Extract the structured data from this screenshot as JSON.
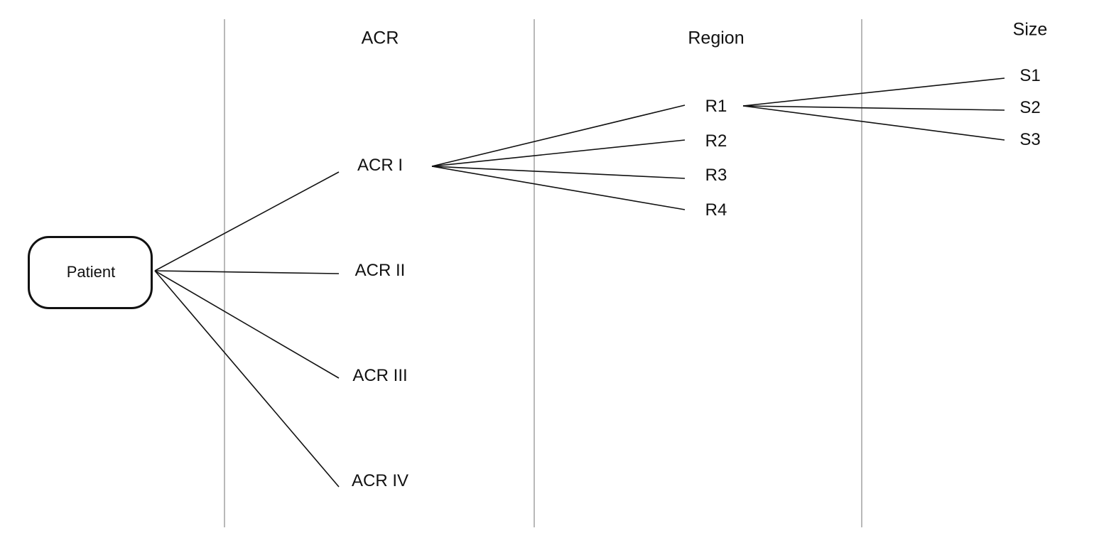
{
  "columns": {
    "acr": "ACR",
    "region": "Region",
    "size": "Size"
  },
  "root": {
    "label": "Patient"
  },
  "acr_nodes": [
    "ACR I",
    "ACR II",
    "ACR III",
    "ACR IV"
  ],
  "region_nodes": [
    "R1",
    "R2",
    "R3",
    "R4"
  ],
  "size_nodes": [
    "S1",
    "S2",
    "S3"
  ],
  "edges": {
    "patient_to_acr": [
      "ACR I",
      "ACR II",
      "ACR III",
      "ACR IV"
    ],
    "acr_i_to_region": [
      "R1",
      "R2",
      "R3",
      "R4"
    ],
    "r1_to_size": [
      "S1",
      "S2",
      "S3"
    ]
  }
}
